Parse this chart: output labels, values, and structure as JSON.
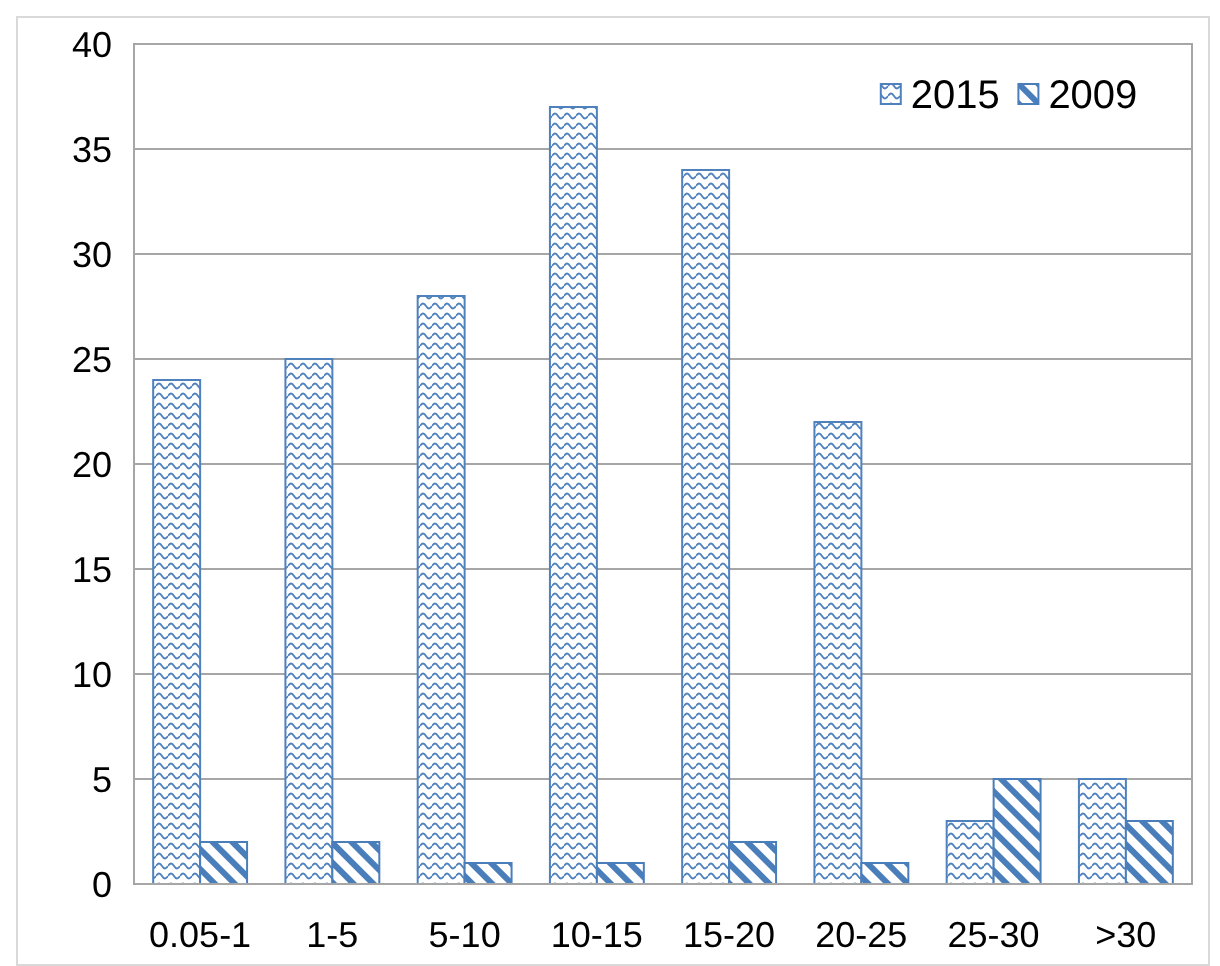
{
  "chart_data": {
    "type": "bar",
    "categories": [
      "0.05-1",
      "1-5",
      "5-10",
      "10-15",
      "15-20",
      "20-25",
      "25-30",
      ">30"
    ],
    "series": [
      {
        "name": "2015",
        "color": "#4f81bd",
        "values": [
          24,
          25,
          28,
          37,
          34,
          22,
          3,
          5
        ]
      },
      {
        "name": "2009",
        "color": "#4a7ebb",
        "values": [
          2,
          2,
          1,
          1,
          2,
          1,
          5,
          3
        ]
      }
    ],
    "ylim": [
      0,
      40
    ],
    "yticks": [
      0,
      5,
      10,
      15,
      20,
      25,
      30,
      35,
      40
    ],
    "grid": "y",
    "legend": "top right"
  }
}
